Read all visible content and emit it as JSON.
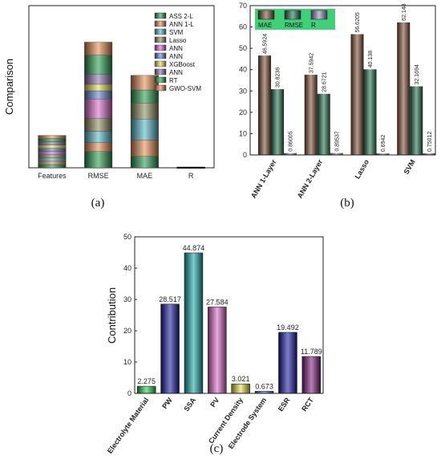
{
  "colors": {
    "green": "#1f9a4a",
    "orange": "#e8894e",
    "cyan": "#4fb6c8",
    "olive": "#8c8a5a",
    "magenta": "#d966c8",
    "blue": "#5a7fd0",
    "yellow": "#e6df4a",
    "purple": "#8a6db0",
    "brown": "#7a4a32",
    "darkgreen": "#1e6b4a",
    "lightpurple": "#9a86c0",
    "lime": "#22d04a",
    "teal": "#14a6a8",
    "navy": "#1414a0",
    "darkmagenta": "#7a1a7a",
    "black": "#222222",
    "cornflower": "#2d7fd8"
  },
  "chart_data": [
    {
      "id": "a",
      "type": "bar",
      "caption": "(a)",
      "ylabel": "Comparison",
      "categories": [
        "Features",
        "RMSE",
        "MAE",
        "R"
      ],
      "ylim": [
        0,
        10
      ],
      "legend_position": "top-right",
      "series": [
        {
          "name": "ASS 2-L",
          "color": "green",
          "values": [
            0.2,
            1.0,
            0.7,
            0.005
          ]
        },
        {
          "name": "ANN 1-L",
          "color": "orange",
          "values": [
            0.2,
            0.55,
            1.0,
            0.005
          ]
        },
        {
          "name": "SVM",
          "color": "cyan",
          "values": [
            0.2,
            0.7,
            1.3,
            0.005
          ]
        },
        {
          "name": "Lasso",
          "color": "olive",
          "values": [
            0.2,
            0.8,
            1.0,
            0.005
          ]
        },
        {
          "name": "ANN",
          "color": "magenta",
          "values": [
            0.2,
            1.2,
            0,
            0.005
          ]
        },
        {
          "name": "ANN",
          "color": "blue",
          "values": [
            0.2,
            0.5,
            0,
            0.005
          ]
        },
        {
          "name": "XGBoost",
          "color": "yellow",
          "values": [
            0.2,
            0.4,
            0,
            0.005
          ]
        },
        {
          "name": "ANN",
          "color": "purple",
          "values": [
            0.2,
            0.6,
            0,
            0.005
          ]
        },
        {
          "name": "RT",
          "color": "green",
          "values": [
            0.2,
            1.2,
            0.8,
            0.005
          ]
        },
        {
          "name": "GWO-SVM",
          "color": "orange",
          "values": [
            0.2,
            0.8,
            0.9,
            0.005
          ]
        }
      ]
    },
    {
      "id": "b",
      "type": "bar",
      "caption": "(b)",
      "categories": [
        "ANN 1-Layer",
        "ANN 2-Layer",
        "Lasso",
        "SVM"
      ],
      "ylim": [
        0,
        70
      ],
      "yticks": [
        0,
        10,
        20,
        30,
        40,
        50,
        60,
        70
      ],
      "legend_position": "top-left",
      "series": [
        {
          "name": "MAE",
          "color": "brown",
          "values": [
            46.5924,
            37.5942,
            56.6205,
            62.148
          ],
          "labels": [
            "46.5924",
            "37.5942",
            "56.6205",
            "62.148"
          ]
        },
        {
          "name": "RMSE",
          "color": "darkgreen",
          "values": [
            30.8236,
            28.6721,
            40.138,
            32.1694
          ],
          "labels": [
            "30.8236",
            "28.6721",
            "40.138",
            "32.1694"
          ]
        },
        {
          "name": "R",
          "color": "lightpurple",
          "values": [
            0.86005,
            0.89537,
            0.6942,
            0.75012
          ],
          "labels": [
            "0.86005",
            "0.89537",
            "0.6942",
            "0.75012"
          ]
        }
      ]
    },
    {
      "id": "c",
      "type": "bar",
      "caption": "(c)",
      "ylabel": "Contribution",
      "ylim": [
        0,
        50
      ],
      "yticks": [
        0,
        10,
        20,
        30,
        40,
        50
      ],
      "categories": [
        "Electrolyte Material",
        "PW",
        "SSA",
        "PV",
        "Current Density",
        "Electrode System",
        "ESR",
        "RCT"
      ],
      "values": [
        2.275,
        28.517,
        44.874,
        27.584,
        3.021,
        0.673,
        19.492,
        11.789
      ],
      "labels": [
        "2.275",
        "28.517",
        "44.874",
        "27.584",
        "3.021",
        "0.673",
        "19.492",
        "11.789"
      ],
      "colors": [
        "lime",
        "navy",
        "teal",
        "magenta",
        "yellow",
        "cornflower",
        "navy",
        "darkmagenta"
      ]
    }
  ]
}
